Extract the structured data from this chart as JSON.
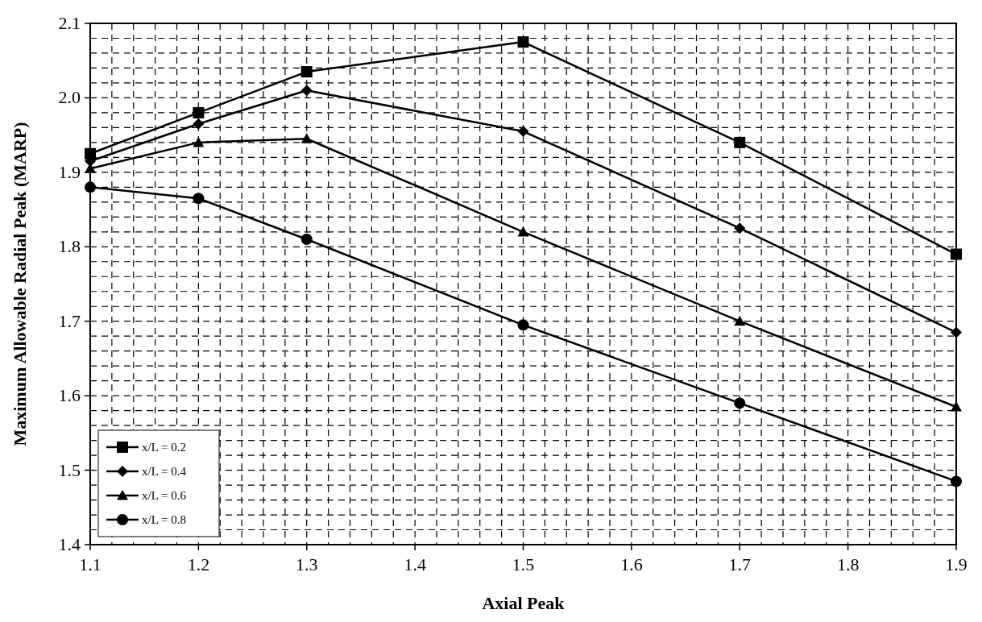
{
  "chart_data": {
    "type": "line",
    "xlabel": "Axial Peak",
    "ylabel": "Maximum Allowable Radial Peak (MARP)",
    "x": [
      1.1,
      1.2,
      1.3,
      1.5,
      1.7,
      1.9
    ],
    "series": [
      {
        "name": "x/L = 0.2",
        "color": "#000000",
        "marker": "square",
        "values": [
          1.925,
          1.98,
          2.035,
          2.075,
          1.94,
          1.79
        ]
      },
      {
        "name": "x/L = 0.4",
        "color": "#000000",
        "marker": "diamond",
        "values": [
          1.915,
          1.965,
          2.01,
          1.955,
          1.825,
          1.685
        ]
      },
      {
        "name": "x/L = 0.6",
        "color": "#000000",
        "marker": "triangle",
        "values": [
          1.905,
          1.94,
          1.945,
          1.82,
          1.7,
          1.585
        ]
      },
      {
        "name": "x/L = 0.8",
        "color": "#000000",
        "marker": "circle",
        "values": [
          1.88,
          1.865,
          1.81,
          1.695,
          1.59,
          1.485
        ]
      }
    ],
    "xlim": [
      1.1,
      1.9
    ],
    "xticks": [
      1.1,
      {
        "value": 1.12,
        "label": null
      },
      {
        "value": 1.14,
        "label": null
      },
      {
        "value": 1.16,
        "label": null
      },
      {
        "value": 1.18,
        "label": null
      },
      1.2,
      {
        "value": 1.22,
        "label": null
      },
      {
        "value": 1.24,
        "label": null
      },
      {
        "value": 1.26,
        "label": null
      },
      {
        "value": 1.28,
        "label": null
      },
      1.3,
      {
        "value": 1.32,
        "label": null
      },
      {
        "value": 1.34,
        "label": null
      },
      {
        "value": 1.36,
        "label": null
      },
      {
        "value": 1.38,
        "label": null
      },
      1.4,
      {
        "value": 1.42,
        "label": null
      },
      {
        "value": 1.44,
        "label": null
      },
      {
        "value": 1.46,
        "label": null
      },
      {
        "value": 1.48,
        "label": null
      },
      1.5,
      {
        "value": 1.52,
        "label": null
      },
      {
        "value": 1.54,
        "label": null
      },
      {
        "value": 1.56,
        "label": null
      },
      {
        "value": 1.58,
        "label": null
      },
      1.6,
      {
        "value": 1.62,
        "label": null
      },
      {
        "value": 1.64,
        "label": null
      },
      {
        "value": 1.66,
        "label": null
      },
      {
        "value": 1.68,
        "label": null
      },
      1.7,
      {
        "value": 1.72,
        "label": null
      },
      {
        "value": 1.74,
        "label": null
      },
      {
        "value": 1.76,
        "label": null
      },
      {
        "value": 1.78,
        "label": null
      },
      1.8,
      {
        "value": 1.82,
        "label": null
      },
      {
        "value": 1.84,
        "label": null
      },
      {
        "value": 1.86,
        "label": null
      },
      {
        "value": 1.88,
        "label": null
      },
      1.9
    ],
    "ylim": [
      1.4,
      2.1
    ],
    "yticks": [
      1.4,
      {
        "value": 1.42,
        "label": null
      },
      {
        "value": 1.44,
        "label": null
      },
      {
        "value": 1.46,
        "label": null
      },
      {
        "value": 1.48,
        "label": null
      },
      1.5,
      {
        "value": 1.52,
        "label": null
      },
      {
        "value": 1.54,
        "label": null
      },
      {
        "value": 1.56,
        "label": null
      },
      {
        "value": 1.58,
        "label": null
      },
      1.6,
      {
        "value": 1.62,
        "label": null
      },
      {
        "value": 1.64,
        "label": null
      },
      {
        "value": 1.66,
        "label": null
      },
      {
        "value": 1.68,
        "label": null
      },
      1.7,
      {
        "value": 1.72,
        "label": null
      },
      {
        "value": 1.74,
        "label": null
      },
      {
        "value": 1.76,
        "label": null
      },
      {
        "value": 1.78,
        "label": null
      },
      1.8,
      {
        "value": 1.82,
        "label": null
      },
      {
        "value": 1.84,
        "label": null
      },
      {
        "value": 1.86,
        "label": null
      },
      {
        "value": 1.88,
        "label": null
      },
      1.9,
      {
        "value": 1.92,
        "label": null
      },
      {
        "value": 1.94,
        "label": null
      },
      {
        "value": 1.96,
        "label": null
      },
      {
        "value": 1.98,
        "label": null
      },
      {
        "value": 2,
        "label": "2.0"
      },
      {
        "value": 2.02,
        "label": null
      },
      {
        "value": 2.04,
        "label": null
      },
      {
        "value": 2.06,
        "label": null
      },
      {
        "value": 2.08,
        "label": null
      },
      2.1
    ],
    "grid": true,
    "legend": "bottom left",
    "line_style": "solid"
  }
}
